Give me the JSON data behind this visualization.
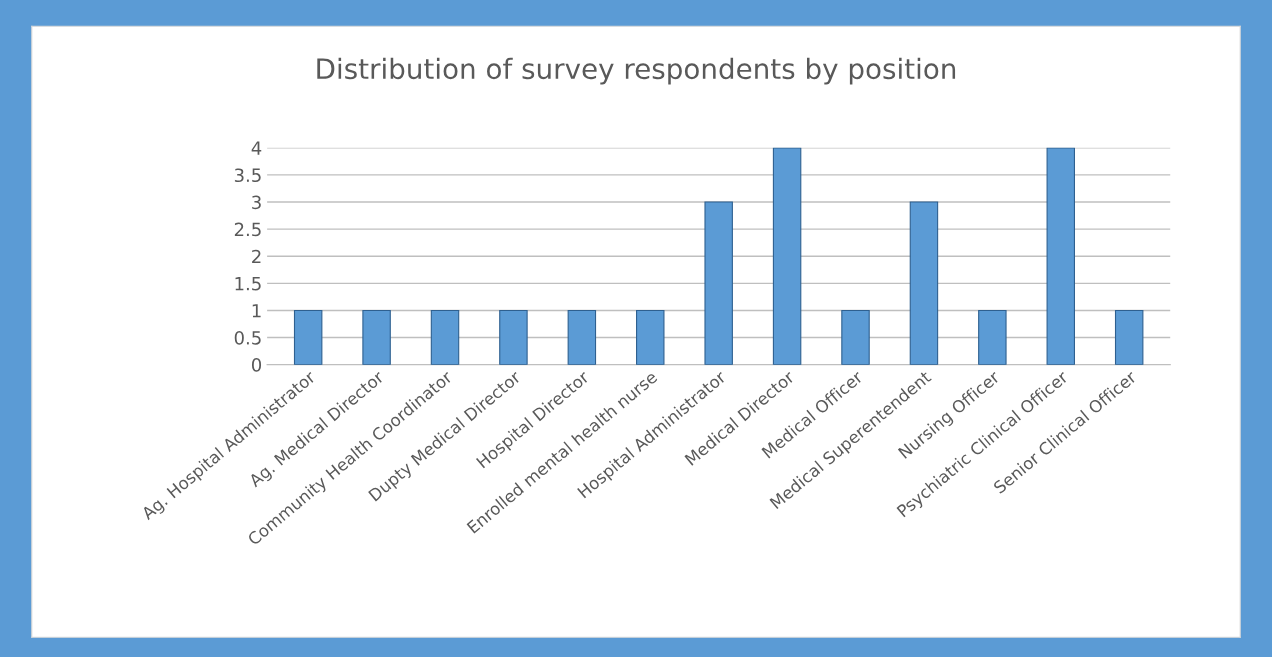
{
  "chart_data": {
    "type": "bar",
    "title": "Distribution of survey respondents by position",
    "categories": [
      "Ag. Hospital Administrator",
      "Ag. Medical Director",
      "Community Health Coordinator",
      "Dupty Medical Director",
      "Hospital Director",
      "Enrolled mental health nurse",
      "Hospital Administrator",
      "Medical Director",
      "Medical Officer",
      "Medical Superentendent",
      "Nursing Officer",
      "Psychiatric Clinical Officer",
      "Senior Clinical Officer"
    ],
    "values": [
      1,
      1,
      1,
      1,
      1,
      1,
      3,
      4,
      1,
      3,
      1,
      4,
      1
    ],
    "color": "#5b9bd5",
    "ylim": [
      0,
      4
    ],
    "yticks": [
      0,
      0.5,
      1,
      1.5,
      2,
      2.5,
      3,
      3.5,
      4
    ],
    "grid": "y"
  }
}
